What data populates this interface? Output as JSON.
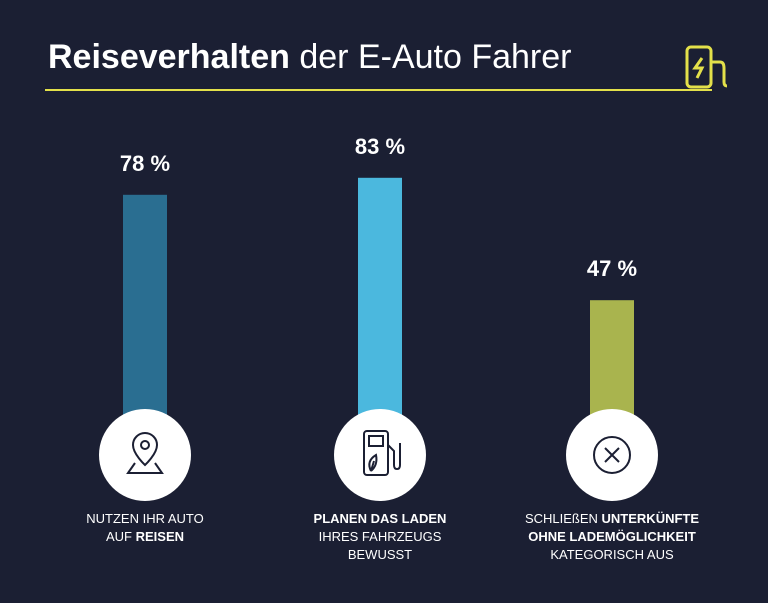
{
  "chart_data": {
    "type": "bar",
    "title": [
      {
        "text": "Reiseverhalten",
        "bold": true
      },
      {
        "text": " der E-Auto Fahrer"
      }
    ],
    "categories": [
      [
        [
          {
            "text": "NUTZEN IHR AUTO"
          }
        ],
        [
          {
            "text": "AUF "
          },
          {
            "text": "REISEN",
            "bold": true
          }
        ]
      ],
      [
        [
          {
            "text": "PLANEN DAS LADEN",
            "bold": true
          }
        ],
        [
          {
            "text": "IHRES FAHRZEUGS"
          }
        ],
        [
          {
            "text": "BEWUSST"
          }
        ]
      ],
      [
        [
          {
            "text": "SCHLIEßEN "
          },
          {
            "text": "UNTERKÜNFTE",
            "bold": true
          }
        ],
        [
          {
            "text": "OHNE LADEMÖGLICHKEIT",
            "bold": true
          }
        ],
        [
          {
            "text": "KATEGORISCH AUS"
          }
        ]
      ]
    ],
    "values": [
      78,
      83,
      47
    ],
    "value_labels": [
      "78 %",
      "83 %",
      "47 %"
    ],
    "colors": [
      "#2a6e91",
      "#4bb8de",
      "#a9b44e"
    ]
  }
}
